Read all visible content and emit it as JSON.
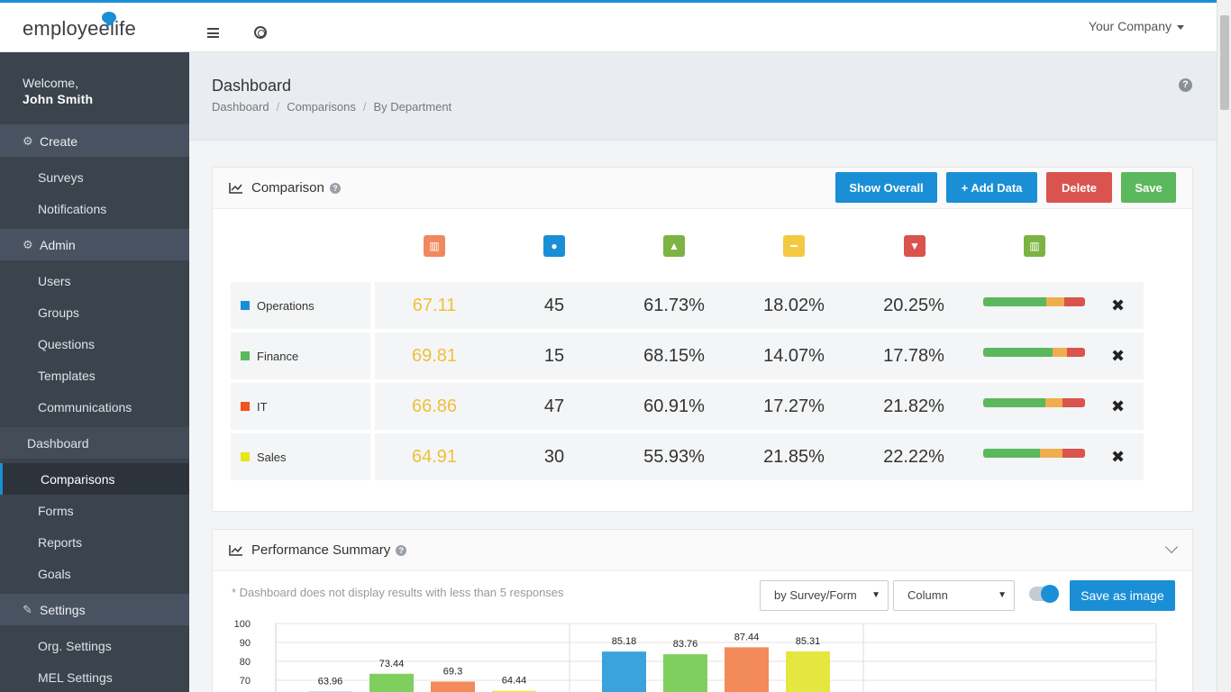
{
  "app": {
    "logo_text": "employeelife",
    "company_menu": "Your Company"
  },
  "sidebar": {
    "welcome": "Welcome,",
    "user_name": "John Smith",
    "create": {
      "label": "Create",
      "items": [
        "Surveys",
        "Notifications"
      ]
    },
    "admin": {
      "label": "Admin",
      "items": [
        "Users",
        "Groups",
        "Questions",
        "Templates",
        "Communications"
      ]
    },
    "dashboard": {
      "label": "Dashboard",
      "items": [
        "Comparisons",
        "Forms",
        "Reports",
        "Goals"
      ]
    },
    "settings": {
      "label": "Settings",
      "items": [
        "Org. Settings",
        "MEL Settings"
      ]
    }
  },
  "page": {
    "title": "Dashboard",
    "breadcrumb": [
      "Dashboard",
      "Comparisons",
      "By Department"
    ]
  },
  "comparison": {
    "title": "Comparison",
    "buttons": {
      "show_overall": "Show Overall",
      "add_data": "+ Add Data",
      "delete": "Delete",
      "save": "Save"
    },
    "column_icons": [
      {
        "name": "score-icon",
        "color": "#f0895f"
      },
      {
        "name": "respondents-icon",
        "color": "#1a8fd6"
      },
      {
        "name": "thumbs-up-icon",
        "color": "#7cb342"
      },
      {
        "name": "neutral-icon",
        "color": "#f5c842"
      },
      {
        "name": "thumbs-down-icon",
        "color": "#d9534f"
      },
      {
        "name": "distribution-icon",
        "color": "#7cb342"
      }
    ],
    "rows": [
      {
        "name": "Operations",
        "color": "#1a8fd6",
        "score": "67.11",
        "count": "45",
        "positive": "61.73%",
        "neutral": "18.02%",
        "negative": "20.25%",
        "dist": [
          61.73,
          18.02,
          20.25
        ]
      },
      {
        "name": "Finance",
        "color": "#5cb85c",
        "score": "69.81",
        "count": "15",
        "positive": "68.15%",
        "neutral": "14.07%",
        "negative": "17.78%",
        "dist": [
          68.15,
          14.07,
          17.78
        ]
      },
      {
        "name": "IT",
        "color": "#f4511e",
        "score": "66.86",
        "count": "47",
        "positive": "60.91%",
        "neutral": "17.27%",
        "negative": "21.82%",
        "dist": [
          60.91,
          17.27,
          21.82
        ]
      },
      {
        "name": "Sales",
        "color": "#e6e61a",
        "score": "64.91",
        "count": "30",
        "positive": "55.93%",
        "neutral": "21.85%",
        "negative": "22.22%",
        "dist": [
          55.93,
          21.85,
          22.22
        ]
      }
    ],
    "bar_colors": {
      "positive": "#5cb85c",
      "neutral": "#f0ad4e",
      "negative": "#d9534f"
    }
  },
  "performance": {
    "title": "Performance Summary",
    "note": "* Dashboard does not display results with less than 5 responses",
    "group_by": "by Survey/Form",
    "chart_type": "Column",
    "save_image": "Save as image"
  },
  "chart_data": {
    "type": "bar",
    "y_ticks": [
      "100",
      "90",
      "80",
      "70"
    ],
    "ylim": [
      60,
      100
    ],
    "groups": [
      {
        "values": [
          63.96,
          73.44,
          69.3,
          64.44
        ],
        "labels": [
          "63.96",
          "73.44",
          "69.3",
          "64.44"
        ]
      },
      {
        "values": [
          85.18,
          83.76,
          87.44,
          85.31
        ],
        "labels": [
          "85.18",
          "83.76",
          "87.44",
          "85.31"
        ]
      }
    ],
    "series_colors": [
      "#3aa3dd",
      "#7fcf5e",
      "#f28a5a",
      "#e6e640"
    ]
  }
}
